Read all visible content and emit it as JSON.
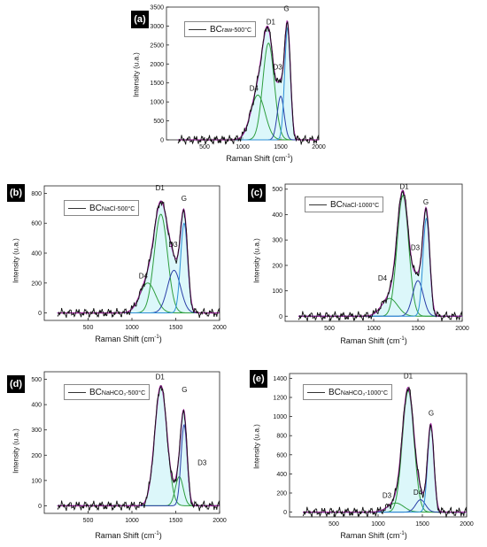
{
  "chart_data": [
    {
      "panel": "(a)",
      "legend_main": "BC",
      "legend_sub": "raw-500°C",
      "type": "line",
      "xlabel": "Raman Shift",
      "xunit": "cm",
      "xunit_sup": "-1",
      "xunit_suffix": ")",
      "ylabel": "Intensity (u.a.)",
      "xlim": [
        0,
        2000
      ],
      "ylim": [
        0,
        3500
      ],
      "xticks": [
        500,
        1000,
        1500,
        2000
      ],
      "yticks": [
        0,
        500,
        1000,
        1500,
        2000,
        2500,
        3000,
        3500
      ],
      "peaks": [
        {
          "name": "D4",
          "center": 1200,
          "height": 1180,
          "width": 95,
          "color": "#2e9e3e"
        },
        {
          "name": "D1",
          "center": 1340,
          "height": 2550,
          "width": 75,
          "color": "#2e9e3e"
        },
        {
          "name": "D3",
          "center": 1500,
          "height": 1150,
          "width": 45,
          "color": "#2a3fa8"
        },
        {
          "name": "G",
          "center": 1590,
          "height": 2950,
          "width": 38,
          "color": "#2b8fd6"
        }
      ],
      "measured_color": "#111111",
      "fit_color": "#a020a0",
      "labels": [
        {
          "text": "D4",
          "x": 1150,
          "y": 1300
        },
        {
          "text": "D1",
          "x": 1370,
          "y": 3050
        },
        {
          "text": "D3",
          "x": 1460,
          "y": 1850
        },
        {
          "text": "G",
          "x": 1575,
          "y": 3400
        }
      ]
    },
    {
      "panel": "(b)",
      "legend_main": "BC",
      "legend_sub": "NaCl-500°C",
      "type": "line",
      "xlabel": "Raman Shift",
      "xunit": "cm",
      "xunit_sup": "-1",
      "xunit_suffix": ")",
      "ylabel": "Intensity (u.a.)",
      "xlim": [
        0,
        2000
      ],
      "ylim": [
        -50,
        850
      ],
      "xticks": [
        500,
        1000,
        1500,
        2000
      ],
      "yticks": [
        0,
        200,
        400,
        600,
        800
      ],
      "peaks": [
        {
          "name": "D4",
          "center": 1180,
          "height": 200,
          "width": 90,
          "color": "#2e9e3e"
        },
        {
          "name": "D1",
          "center": 1330,
          "height": 660,
          "width": 75,
          "color": "#2e9e3e"
        },
        {
          "name": "D3",
          "center": 1480,
          "height": 285,
          "width": 75,
          "color": "#2a3fa8"
        },
        {
          "name": "G",
          "center": 1595,
          "height": 600,
          "width": 40,
          "color": "#2b8fd6"
        }
      ],
      "measured_color": "#111111",
      "fit_color": "#a020a0",
      "labels": [
        {
          "text": "D4",
          "x": 1130,
          "y": 230
        },
        {
          "text": "D1",
          "x": 1320,
          "y": 820
        },
        {
          "text": "D3",
          "x": 1470,
          "y": 440
        },
        {
          "text": "G",
          "x": 1595,
          "y": 750
        }
      ]
    },
    {
      "panel": "(c)",
      "legend_main": "BC",
      "legend_sub": "NaCl-1000°C",
      "type": "line",
      "xlabel": "Raman Shift",
      "xunit": "cm",
      "xunit_sup": "-1",
      "xunit_suffix": ")",
      "ylabel": "Intensity (u.a.)",
      "xlim": [
        0,
        2000
      ],
      "ylim": [
        -20,
        520
      ],
      "xticks": [
        500,
        1000,
        1500,
        2000
      ],
      "yticks": [
        0,
        100,
        200,
        300,
        400,
        500
      ],
      "peaks": [
        {
          "name": "D4",
          "center": 1180,
          "height": 70,
          "width": 90,
          "color": "#2e9e3e"
        },
        {
          "name": "D1",
          "center": 1330,
          "height": 475,
          "width": 65,
          "color": "#2e9e3e"
        },
        {
          "name": "D3",
          "center": 1500,
          "height": 140,
          "width": 60,
          "color": "#2a3fa8"
        },
        {
          "name": "G",
          "center": 1595,
          "height": 385,
          "width": 38,
          "color": "#2b8fd6"
        }
      ],
      "measured_color": "#111111",
      "fit_color": "#a020a0",
      "labels": [
        {
          "text": "D4",
          "x": 1100,
          "y": 140
        },
        {
          "text": "D1",
          "x": 1345,
          "y": 500
        },
        {
          "text": "D3",
          "x": 1470,
          "y": 260
        },
        {
          "text": "G",
          "x": 1590,
          "y": 440
        }
      ]
    },
    {
      "panel": "(d)",
      "legend_main": "BC",
      "legend_sub": "NaHCO₃-500°C",
      "type": "line",
      "xlabel": "Raman Shift",
      "xunit": "cm",
      "xunit_sup": "-1",
      "xunit_suffix": ")",
      "ylabel": "Intensity (u.a.)",
      "xlim": [
        0,
        2000
      ],
      "ylim": [
        -30,
        530
      ],
      "xticks": [
        500,
        1000,
        1500,
        2000
      ],
      "yticks": [
        0,
        100,
        200,
        300,
        400,
        500
      ],
      "peaks": [
        {
          "name": "D1",
          "center": 1330,
          "height": 475,
          "width": 70,
          "color": "#2e9e3e"
        },
        {
          "name": "D3",
          "center": 1540,
          "height": 115,
          "width": 45,
          "color": "#2e9e3e"
        },
        {
          "name": "G",
          "center": 1595,
          "height": 320,
          "width": 35,
          "color": "#2a3fa8"
        }
      ],
      "measured_color": "#111111",
      "fit_color": "#a020a0",
      "labels": [
        {
          "text": "D1",
          "x": 1320,
          "y": 500
        },
        {
          "text": "G",
          "x": 1600,
          "y": 450
        },
        {
          "text": "D3",
          "x": 1800,
          "y": 160
        }
      ]
    },
    {
      "panel": "(e)",
      "legend_main": "BC",
      "legend_sub": "NaHCO₃-1000°C",
      "type": "line",
      "xlabel": "Raman Shift",
      "xunit": "cm",
      "xunit_sup": "-1",
      "xunit_suffix": ")",
      "ylabel": "Intensity (u.a.)",
      "xlim": [
        0,
        2000
      ],
      "ylim": [
        -50,
        1450
      ],
      "xticks": [
        500,
        1000,
        1500,
        2000
      ],
      "yticks": [
        0,
        200,
        400,
        600,
        800,
        1000,
        1200,
        1400
      ],
      "peaks": [
        {
          "name": "D3",
          "center": 1200,
          "height": 95,
          "width": 90,
          "color": "#2e9e3e"
        },
        {
          "name": "D1",
          "center": 1340,
          "height": 1270,
          "width": 65,
          "color": "#2e9e3e"
        },
        {
          "name": "D4",
          "center": 1480,
          "height": 130,
          "width": 55,
          "color": "#2a3fa8"
        },
        {
          "name": "G",
          "center": 1595,
          "height": 910,
          "width": 35,
          "color": "#2b8fd6"
        }
      ],
      "measured_color": "#111111",
      "fit_color": "#a020a0",
      "labels": [
        {
          "text": "D3",
          "x": 1100,
          "y": 150
        },
        {
          "text": "D1",
          "x": 1340,
          "y": 1400
        },
        {
          "text": "D4",
          "x": 1450,
          "y": 180
        },
        {
          "text": "G",
          "x": 1600,
          "y": 1010
        }
      ]
    }
  ]
}
